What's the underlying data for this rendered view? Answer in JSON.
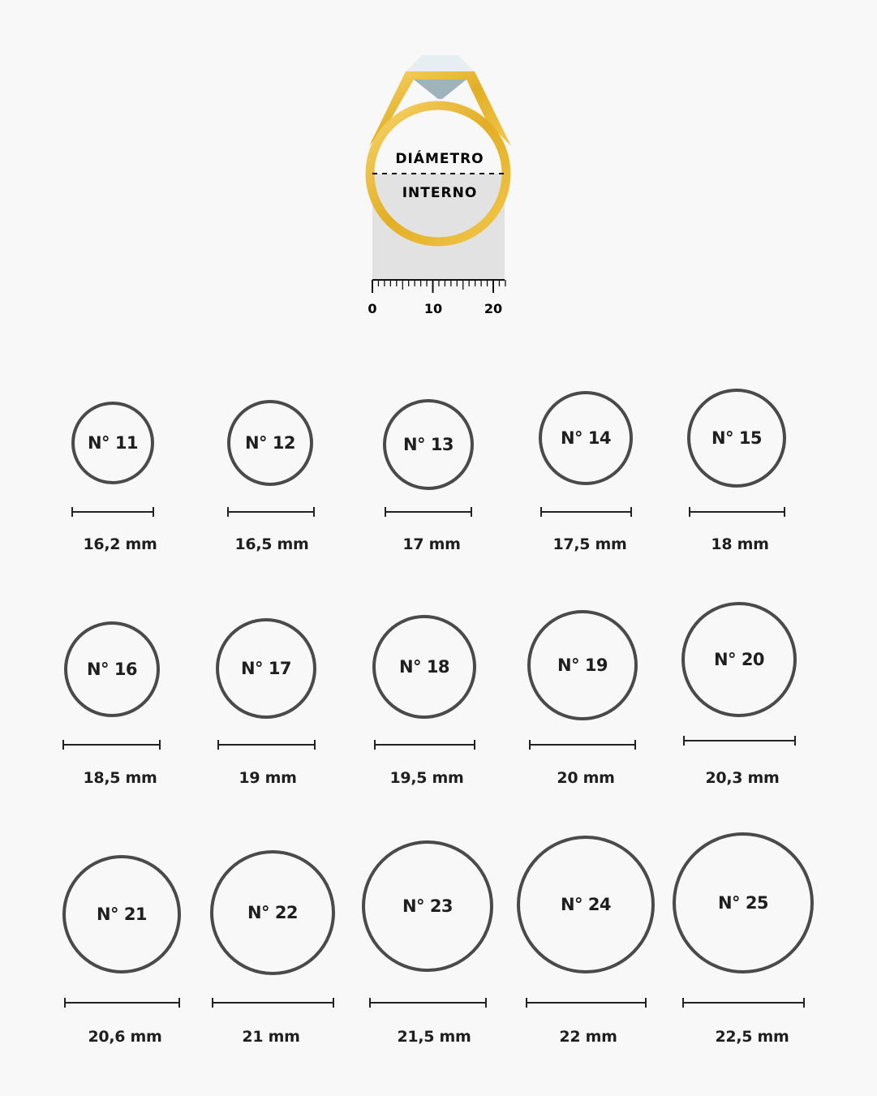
{
  "illustration": {
    "label_top": "DIÁMETRO",
    "label_bottom": "INTERNO",
    "scale_ticks": [
      "0",
      "10",
      "20"
    ],
    "gold_color": "#e8b830",
    "icon": "ring-with-diamond-icon"
  },
  "sizes": [
    {
      "label": "N° 11",
      "diameter": "16,2 mm"
    },
    {
      "label": "N° 12",
      "diameter": "16,5 mm"
    },
    {
      "label": "N° 13",
      "diameter": "17 mm"
    },
    {
      "label": "N° 14",
      "diameter": "17,5 mm"
    },
    {
      "label": "N° 15",
      "diameter": "18 mm"
    },
    {
      "label": "N° 16",
      "diameter": "18,5 mm"
    },
    {
      "label": "N° 17",
      "diameter": "19 mm"
    },
    {
      "label": "N° 18",
      "diameter": "19,5 mm"
    },
    {
      "label": "N° 19",
      "diameter": "20 mm"
    },
    {
      "label": "N° 20",
      "diameter": "20,3 mm"
    },
    {
      "label": "N° 21",
      "diameter": "20,6 mm"
    },
    {
      "label": "N° 22",
      "diameter": "21 mm"
    },
    {
      "label": "N° 23",
      "diameter": "21,5 mm"
    },
    {
      "label": "N° 24",
      "diameter": "22 mm"
    },
    {
      "label": "N° 25",
      "diameter": "22,5 mm"
    }
  ]
}
